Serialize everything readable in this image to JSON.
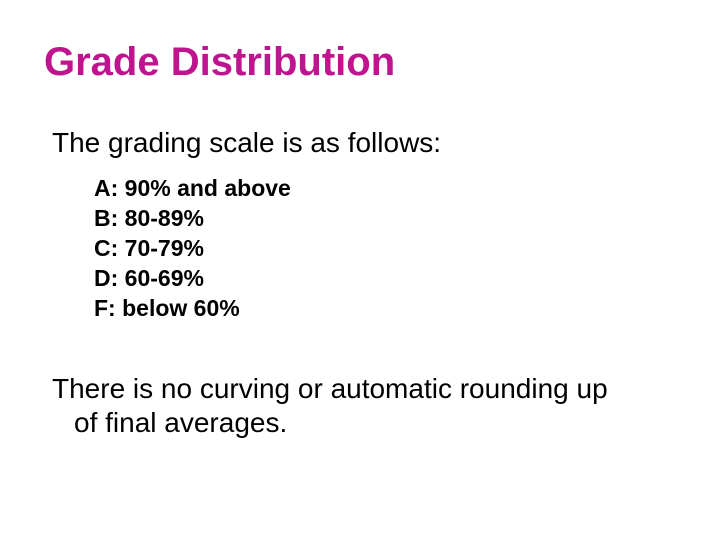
{
  "slide": {
    "title": "Grade Distribution",
    "title_color": "#c0148f",
    "intro": "The grading scale is as follows:",
    "scale": [
      "A: 90% and above",
      "B: 80-89%",
      "C: 70-79%",
      "D: 60-69%",
      "F: below 60%"
    ],
    "closing_line1": "There is no curving or automatic rounding up",
    "closing_line2": "of final averages."
  }
}
